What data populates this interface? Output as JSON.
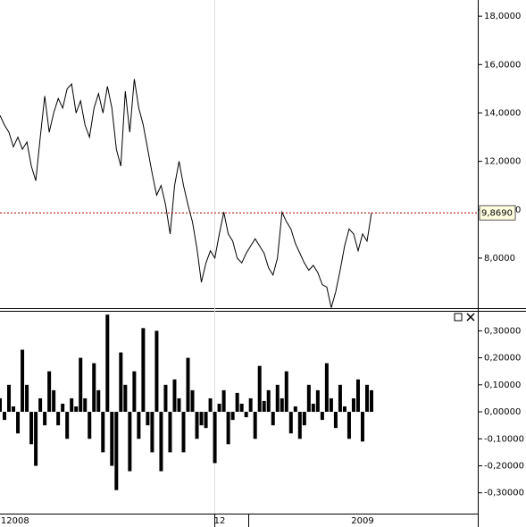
{
  "chart_data": [
    {
      "type": "line",
      "color": "#000000",
      "values": [
        13.9,
        13.5,
        13.2,
        12.6,
        13.0,
        12.5,
        12.8,
        11.8,
        11.2,
        13.0,
        14.7,
        13.2,
        14.0,
        14.6,
        14.2,
        15.0,
        15.2,
        14.0,
        14.5,
        13.5,
        13.0,
        14.2,
        14.8,
        14.0,
        15.1,
        14.2,
        12.5,
        11.8,
        14.9,
        13.2,
        15.4,
        14.2,
        13.5,
        12.5,
        11.5,
        10.6,
        11.0,
        10.2,
        9.0,
        11.0,
        12.0,
        11.0,
        10.2,
        9.5,
        8.4,
        7.0,
        7.8,
        8.3,
        8.0,
        9.0,
        9.9,
        9.0,
        8.7,
        8.0,
        7.8,
        8.2,
        8.5,
        8.8,
        8.5,
        8.2,
        7.6,
        7.3,
        8.0,
        9.9,
        9.5,
        9.2,
        8.6,
        8.2,
        7.8,
        7.5,
        7.7,
        7.4,
        6.9,
        6.8,
        5.95,
        6.6,
        7.5,
        8.5,
        9.2,
        9.0,
        8.3,
        9.0,
        8.7,
        9.869
      ],
      "value_labels": {
        "83": "9,8690"
      },
      "ylim": [
        5.93,
        18.67
      ],
      "yticks": [
        {
          "value": 8,
          "label": "8,0000"
        },
        {
          "value": 10,
          "label": "10,0000"
        },
        {
          "value": 12,
          "label": "12,0000"
        },
        {
          "value": 14,
          "label": "14,0000"
        },
        {
          "value": 16,
          "label": "16,0000"
        },
        {
          "value": 18,
          "label": "18,0000"
        }
      ],
      "grid": false
    },
    {
      "type": "bar",
      "color": "#000000",
      "values": [
        0.05,
        -0.03,
        0.1,
        0.02,
        -0.08,
        0.23,
        0.1,
        -0.12,
        -0.2,
        0.05,
        -0.05,
        0.15,
        0.08,
        -0.05,
        0.03,
        -0.1,
        0.05,
        0.02,
        0.2,
        0.05,
        -0.1,
        0.18,
        0.08,
        -0.15,
        0.36,
        -0.2,
        -0.29,
        0.22,
        0.1,
        -0.22,
        0.15,
        -0.1,
        0.31,
        -0.05,
        -0.15,
        0.3,
        -0.22,
        0.1,
        -0.15,
        0.12,
        0.05,
        -0.15,
        0.2,
        0.08,
        -0.1,
        -0.05,
        -0.06,
        0.05,
        -0.19,
        0.03,
        0.08,
        -0.12,
        -0.03,
        0.07,
        0.03,
        -0.02,
        0.05,
        -0.1,
        0.17,
        0.04,
        0.08,
        -0.05,
        0.1,
        0.05,
        0.15,
        -0.08,
        0.02,
        -0.1,
        -0.05,
        0.1,
        0.03,
        0.08,
        -0.03,
        0.18,
        0.05,
        -0.06,
        0.1,
        0.02,
        -0.1,
        0.05,
        0.12,
        -0.11,
        0.1,
        0.08
      ],
      "ylim": [
        -0.377,
        0.374
      ],
      "yticks": [
        {
          "value": -0.3,
          "label": "-0,30000"
        },
        {
          "value": -0.2,
          "label": "-0,20000"
        },
        {
          "value": -0.1,
          "label": "-0,10000"
        },
        {
          "value": 0,
          "label": "0,00000"
        },
        {
          "value": 0.1,
          "label": "0,10000"
        },
        {
          "value": 0.2,
          "label": "0,20000"
        },
        {
          "value": 0.3,
          "label": "0,30000"
        }
      ]
    }
  ],
  "x_axis_labels": [
    "1",
    "2008",
    "12",
    "2009"
  ]
}
